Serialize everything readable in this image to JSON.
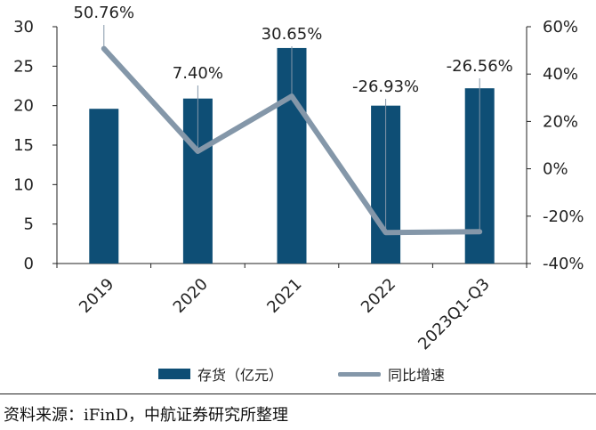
{
  "chart_data": {
    "type": "bar",
    "categories": [
      "2019",
      "2020",
      "2021",
      "2022",
      "2023Q1-Q3"
    ],
    "series": [
      {
        "name": "存货（亿元）",
        "type": "bar",
        "axis": "left",
        "values": [
          19.6,
          20.9,
          27.3,
          20.0,
          22.2
        ]
      },
      {
        "name": "同比增速",
        "type": "line",
        "axis": "right",
        "values": [
          50.76,
          7.4,
          30.65,
          -26.93,
          -26.56
        ],
        "labels": [
          "50.76%",
          "7.40%",
          "30.65%",
          "-26.93%",
          "-26.56%"
        ]
      }
    ],
    "left_axis": {
      "ylim": [
        0,
        30
      ],
      "ticks": [
        "0",
        "5",
        "10",
        "15",
        "20",
        "25",
        "30"
      ]
    },
    "right_axis": {
      "ylim": [
        -40,
        60
      ],
      "ticks": [
        "-40%",
        "-20%",
        "0%",
        "20%",
        "40%",
        "60%"
      ]
    },
    "legend_position": "bottom",
    "grid": false
  },
  "colors": {
    "bar": "#0e4e75",
    "line": "#8497a9",
    "axis": "#222222"
  },
  "source": "资料来源：iFinD，中航证券研究所整理"
}
